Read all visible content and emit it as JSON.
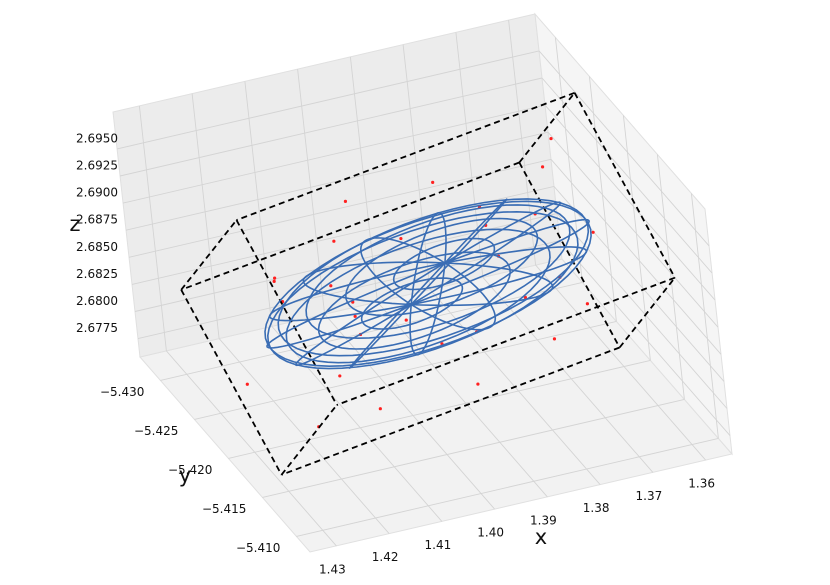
{
  "chart_data": {
    "type": "scatter3d",
    "xlabel": "x",
    "ylabel": "y",
    "zlabel": "z",
    "xlim": [
      1.355,
      1.435
    ],
    "ylim": [
      -5.433,
      -5.408
    ],
    "zlim": [
      2.6758,
      2.6984
    ],
    "xticks": [
      1.36,
      1.37,
      1.38,
      1.39,
      {
        "value": 1.4,
        "label": "1.40"
      },
      1.41,
      1.42,
      1.43
    ],
    "yticks": [
      {
        "value": -5.43,
        "label": "−5.430"
      },
      {
        "value": -5.425,
        "label": "−5.425"
      },
      {
        "value": -5.42,
        "label": "−5.420"
      },
      {
        "value": -5.415,
        "label": "−5.415"
      },
      {
        "value": -5.41,
        "label": "−5.410"
      }
    ],
    "zticks": [
      2.6775,
      {
        "value": 2.68,
        "label": "2.6800"
      },
      2.6825,
      {
        "value": 2.685,
        "label": "2.6850"
      },
      2.6875,
      {
        "value": 2.69,
        "label": "2.6900"
      },
      2.6925,
      {
        "value": 2.695,
        "label": "2.6950"
      }
    ],
    "grid": true,
    "series": [
      {
        "color": "#ff2020",
        "x": [
          1.4192,
          1.3766,
          1.3984,
          1.3571,
          1.4171,
          1.3805,
          1.4312,
          1.3712,
          1.3988,
          1.3893,
          1.4164,
          1.3824,
          1.4029,
          1.3641,
          1.4225,
          1.3848,
          1.4089,
          1.3754,
          1.423,
          1.361,
          1.3978,
          1.414,
          1.3705,
          1.4037,
          1.378,
          1.4293,
          1.3644,
          1.4057,
          1.3956,
          1.4153
        ],
        "y": [
          -5.4234,
          -5.4202,
          -5.4092,
          -5.4307,
          -5.4098,
          -5.422,
          -5.4189,
          -5.4148,
          -5.4285,
          -5.4285,
          -5.4124,
          -5.4108,
          -5.4254,
          -5.4284,
          -5.4111,
          -5.4165,
          -5.4198,
          -5.4151,
          -5.4189,
          -5.4218,
          -5.4158,
          -5.428,
          -5.4318,
          -5.416,
          -5.4324,
          -5.4094,
          -5.426,
          -5.4249,
          -5.4125,
          -5.4175
        ],
        "z": [
          2.6879,
          2.6839,
          2.6911,
          2.6888,
          2.6857,
          2.6897,
          2.683,
          2.6866,
          2.6893,
          2.6848,
          2.6906,
          2.6875,
          2.6827,
          2.6843,
          2.6884,
          2.6913,
          2.6861,
          2.6893,
          2.6897,
          2.687,
          2.6852,
          2.6843,
          2.6832,
          2.6879,
          2.6859,
          2.6857,
          2.6904,
          2.689,
          2.6836,
          2.6913
        ]
      }
    ],
    "box": {
      "color": "#000000",
      "center": [
        1.3941,
        -5.4204,
        2.687
      ],
      "half_edges": [
        [
          0.0354,
          0.0026,
          0
        ],
        [
          -0.0033,
          0.0023,
          0.0045
        ],
        [
          0.0048,
          0.0111,
          0
        ]
      ]
    },
    "ellipsoid": {
      "color": "#3a6db4",
      "center": [
        1.3941,
        -5.4204,
        2.687
      ],
      "axes": [
        [
          0.0336,
          0.0025,
          0
        ],
        [
          0.0029,
          0.0067,
          0
        ],
        [
          -0.002,
          0.0014,
          0.0027
        ]
      ]
    }
  }
}
